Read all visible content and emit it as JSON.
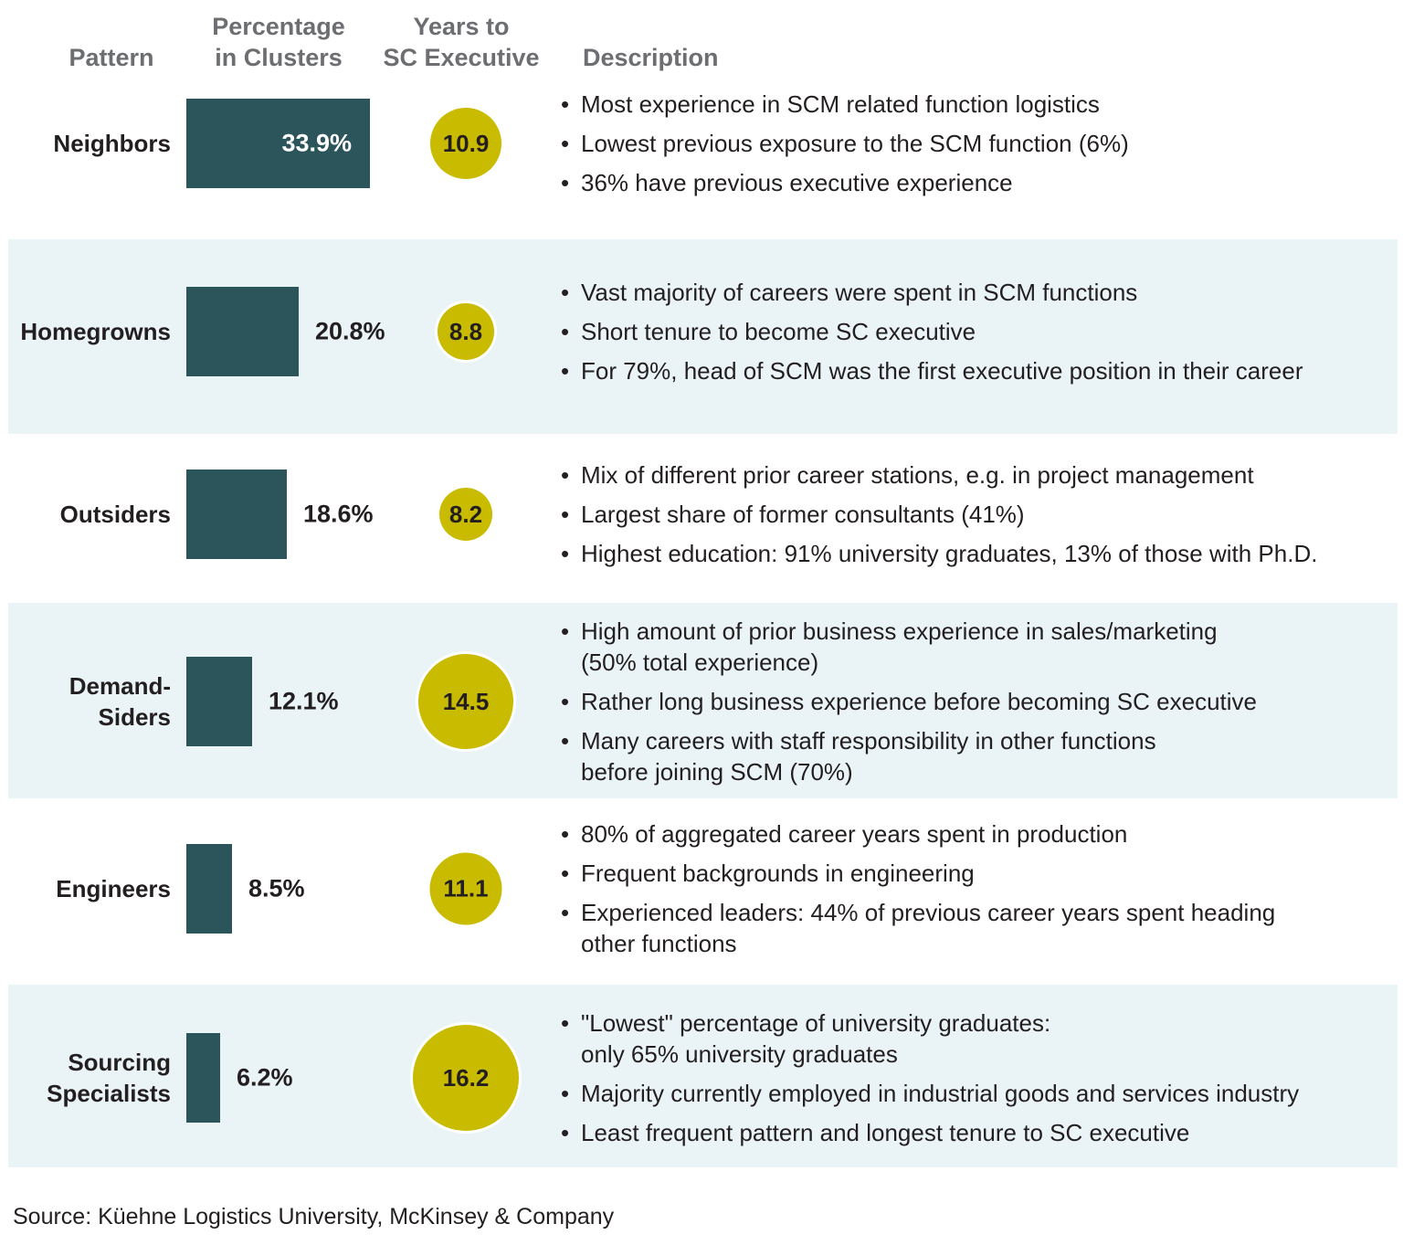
{
  "headers": {
    "pattern": "Pattern",
    "percentage": "Percentage\nin Clusters",
    "years": "Years to\nSC Executive",
    "description": "Description"
  },
  "colors": {
    "bar": "#2b555b",
    "circle": "#c9bb00",
    "shaded_row": "#eaf3f6",
    "header_text": "#6d6e71"
  },
  "chart_data": {
    "type": "table",
    "title": "",
    "columns": [
      "Pattern",
      "Percentage in Clusters",
      "Years to SC Executive",
      "Description"
    ],
    "rows": [
      {
        "pattern": "Neighbors",
        "percentage": 33.9,
        "percentage_label": "33.9%",
        "years": 10.9,
        "years_label": "10.9",
        "shaded": false,
        "description": [
          "Most experience in SCM related function logistics",
          "Lowest previous exposure to the SCM function (6%)",
          "36% have previous executive experience"
        ]
      },
      {
        "pattern": "Homegrowns",
        "percentage": 20.8,
        "percentage_label": "20.8%",
        "years": 8.8,
        "years_label": "8.8",
        "shaded": true,
        "description": [
          "Vast majority of careers were spent in SCM functions",
          "Short tenure to become SC executive",
          "For 79%, head of SCM was the first executive position in their career"
        ]
      },
      {
        "pattern": "Outsiders",
        "percentage": 18.6,
        "percentage_label": "18.6%",
        "years": 8.2,
        "years_label": "8.2",
        "shaded": false,
        "description": [
          "Mix of different prior career stations, e.g. in project management",
          "Largest share of former consultants (41%)",
          "Highest education: 91% university graduates, 13% of those with Ph.D."
        ]
      },
      {
        "pattern": "Demand-\nSiders",
        "percentage": 12.1,
        "percentage_label": "12.1%",
        "years": 14.5,
        "years_label": "14.5",
        "shaded": true,
        "description": [
          "High amount of prior business experience in sales/marketing\n(50% total experience)",
          "Rather long business experience before becoming SC executive",
          "Many careers with staff responsibility in other functions\nbefore joining SCM (70%)"
        ]
      },
      {
        "pattern": "Engineers",
        "percentage": 8.5,
        "percentage_label": "8.5%",
        "years": 11.1,
        "years_label": "11.1",
        "shaded": false,
        "description": [
          "80% of aggregated career years spent in production",
          "Frequent backgrounds in engineering",
          "Experienced leaders: 44% of previous career years spent heading\nother functions"
        ]
      },
      {
        "pattern": "Sourcing\nSpecialists",
        "percentage": 6.2,
        "percentage_label": "6.2%",
        "years": 16.2,
        "years_label": "16.2",
        "shaded": true,
        "description": [
          "\"Lowest\" percentage of university graduates:\nonly 65% university graduates",
          "Majority currently employed in industrial goods and services industry",
          "Least frequent pattern and longest tenure to SC executive"
        ]
      }
    ]
  },
  "source": "Source: Küehne Logistics University, McKinsey & Company"
}
